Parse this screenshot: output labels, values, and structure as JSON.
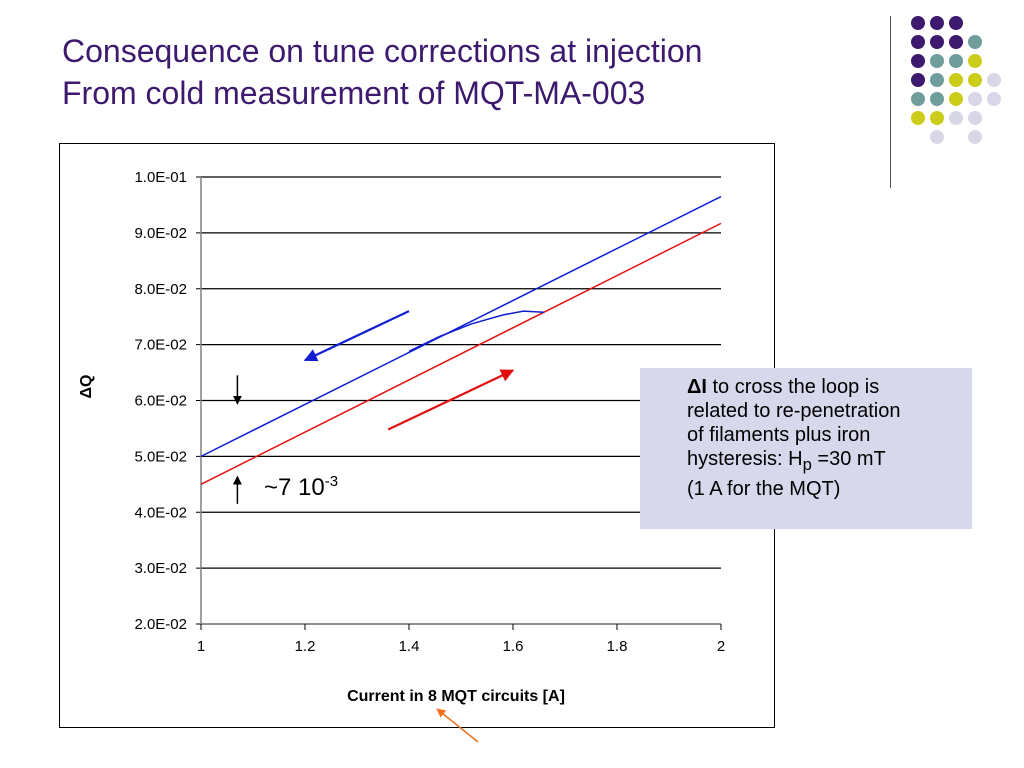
{
  "title": {
    "line1": "Consequence on tune corrections at injection",
    "line2": "From cold measurement of MQT-MA-003"
  },
  "colors": {
    "title": "#3d1a6e",
    "up_branch": "#e01010",
    "down_branch": "#1020d0",
    "note_bg": "#d8d8ec",
    "dot_purple": "#3d1a6e",
    "dot_teal": "#6f9d9c",
    "dot_yellow": "#cccc1a",
    "dot_lavender": "#d7d7e8",
    "pointer_arrow": "#f07020"
  },
  "decor": {
    "dot_grid": [
      [
        "purple",
        "purple",
        "purple",
        null,
        null
      ],
      [
        "purple",
        "purple",
        "purple",
        "teal",
        null
      ],
      [
        "purple",
        "teal",
        "teal",
        "yellow",
        null
      ],
      [
        "purple",
        "teal",
        "yellow",
        "yellow",
        "lavender"
      ],
      [
        "teal",
        "teal",
        "yellow",
        "lavender",
        "lavender"
      ],
      [
        "yellow",
        "yellow",
        "lavender",
        "lavender",
        null
      ],
      [
        null,
        "lavender",
        null,
        "lavender",
        null
      ]
    ]
  },
  "chart_data": {
    "type": "line",
    "xlabel": "Current in 8 MQT circuits [A]",
    "ylabel": "ΔQ",
    "xlim": [
      1,
      2
    ],
    "ylim": [
      0.02,
      0.1
    ],
    "x_ticks": [
      1,
      1.2,
      1.4,
      1.6,
      1.8,
      2
    ],
    "x_tick_labels": [
      "1",
      "1.2",
      "1.4",
      "1.6",
      "1.8",
      "2"
    ],
    "y_ticks": [
      0.02,
      0.03,
      0.04,
      0.05,
      0.06,
      0.07,
      0.08,
      0.09,
      0.1
    ],
    "y_tick_labels": [
      "2.0E-02",
      "3.0E-02",
      "4.0E-02",
      "5.0E-02",
      "6.0E-02",
      "7.0E-02",
      "8.0E-02",
      "9.0E-02",
      "1.0E-01"
    ],
    "grid": true,
    "series": [
      {
        "key": "down",
        "x": [
          1.0,
          2.0
        ],
        "y": [
          0.05,
          0.0965
        ]
      },
      {
        "key": "up",
        "x": [
          1.0,
          2.0
        ],
        "y": [
          0.045,
          0.0917
        ]
      },
      {
        "key": "loop",
        "x": [
          1.4,
          1.46,
          1.52,
          1.58,
          1.62,
          1.66
        ],
        "y": [
          0.0688,
          0.0715,
          0.0737,
          0.0753,
          0.076,
          0.0758
        ]
      }
    ],
    "arrows": [
      {
        "key": "down_dir",
        "from": [
          1.4,
          0.076
        ],
        "to": [
          1.2,
          0.0672
        ]
      },
      {
        "key": "up_dir",
        "from": [
          1.36,
          0.0548
        ],
        "to": [
          1.6,
          0.0654
        ]
      }
    ],
    "gap_marker": {
      "x": 1.07,
      "top": [
        0.0645,
        0.0594
      ],
      "bottom": [
        0.0415,
        0.0464
      ]
    },
    "annotation": {
      "base": "~7 10",
      "exponent": "-3"
    }
  },
  "note": {
    "bold": "ΔI",
    "line1_rest": " to cross the loop is",
    "line2": "related to re-penetration",
    "line3": "of filaments plus iron",
    "line4_pre": "hysteresis: H",
    "line4_sub": "p",
    "line4_post": " =30 mT",
    "line5": "(1 A for the MQT)"
  }
}
